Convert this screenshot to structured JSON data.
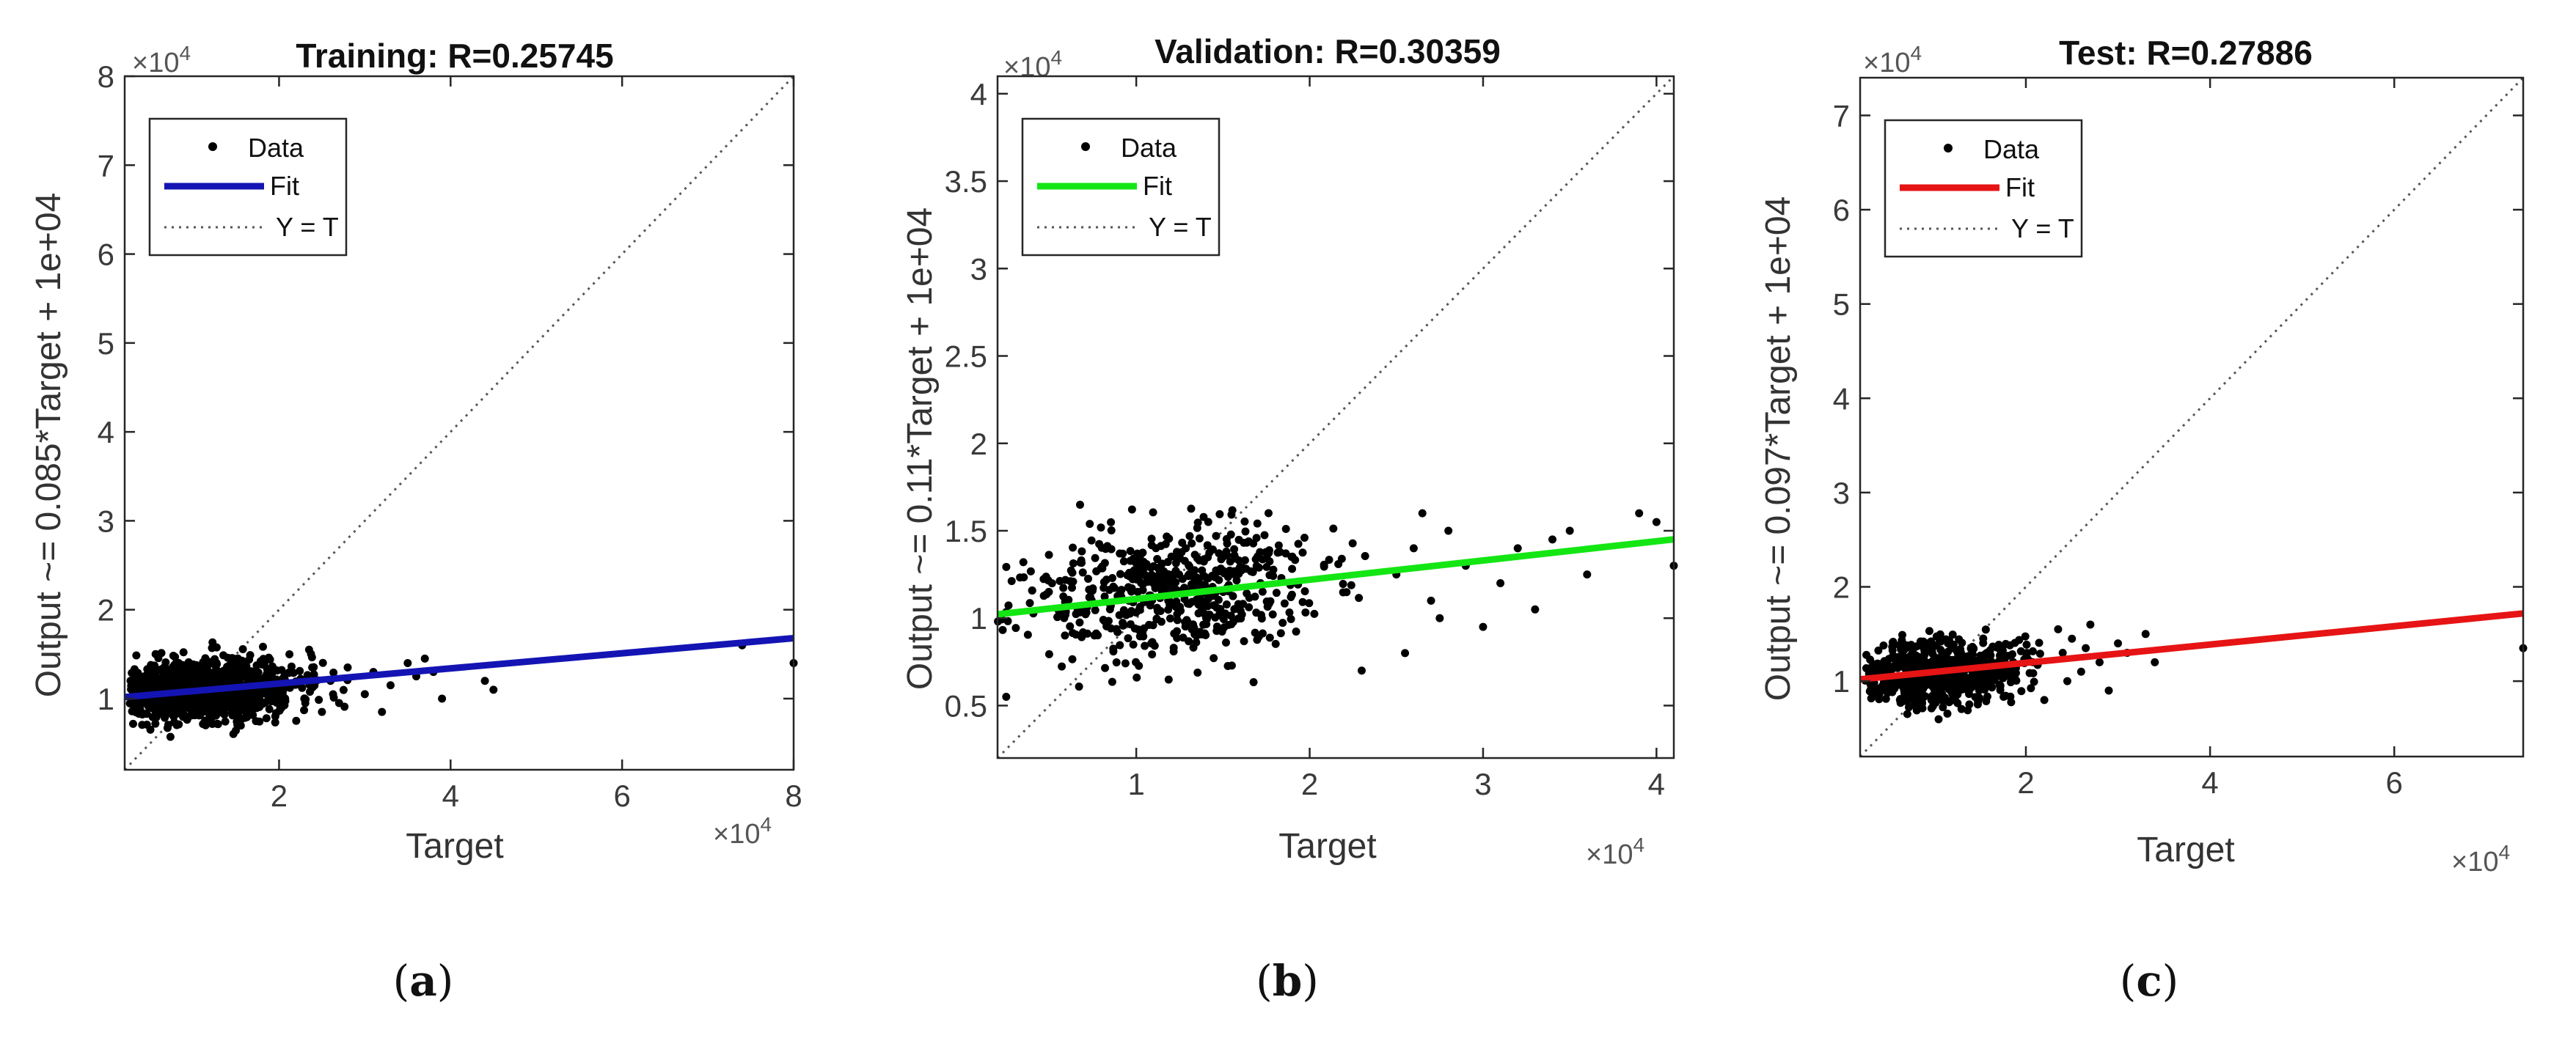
{
  "chart_data": [
    {
      "type": "scatter",
      "panel": "a",
      "caption": "a",
      "title": "Training: R=0.25745",
      "xlabel": "Target",
      "ylabel": "Output ~= 0.085*Target + 1e+04",
      "x_exponent": "×10",
      "x_exponent_power": "4",
      "y_exponent": "×10",
      "y_exponent_power": "4",
      "xlim": [
        0.2,
        8
      ],
      "ylim": [
        0.2,
        8
      ],
      "xticks": [
        2,
        4,
        6,
        8
      ],
      "yticks": [
        1,
        2,
        3,
        4,
        5,
        6,
        7,
        8
      ],
      "tick_labels_x": [
        "2",
        "4",
        "6",
        "8"
      ],
      "tick_labels_y": [
        "1",
        "2",
        "3",
        "4",
        "5",
        "6",
        "7",
        "8"
      ],
      "fit": {
        "slope": 0.085,
        "intercept": 1.0,
        "color": "#1414b4"
      },
      "cloud": {
        "cx": 1.1,
        "cy": 1.1,
        "sx": 0.55,
        "sy": 0.17,
        "n": 1100,
        "xmin": 0.25,
        "xmax": 2.9,
        "ymin": 0.55,
        "ymax": 1.75,
        "seed": 11
      },
      "extra_points": [
        [
          2.6,
          1.2
        ],
        [
          2.8,
          1.35
        ],
        [
          3.0,
          1.05
        ],
        [
          3.1,
          1.3
        ],
        [
          3.3,
          1.15
        ],
        [
          3.5,
          1.4
        ],
        [
          3.6,
          1.25
        ],
        [
          3.8,
          1.3
        ],
        [
          3.9,
          1.0
        ],
        [
          4.4,
          1.2
        ],
        [
          4.5,
          1.1
        ],
        [
          7.4,
          1.6
        ],
        [
          8.0,
          1.4
        ],
        [
          2.2,
          0.75
        ],
        [
          2.5,
          0.85
        ],
        [
          2.7,
          0.95
        ],
        [
          3.2,
          0.85
        ],
        [
          3.7,
          1.45
        ],
        [
          2.35,
          1.55
        ]
      ],
      "legend": {
        "data": "Data",
        "fit": "Fit",
        "yt": "Y = T"
      }
    },
    {
      "type": "scatter",
      "panel": "b",
      "caption": "b",
      "title": "Validation: R=0.30359",
      "xlabel": "Target",
      "ylabel": "Output ~= 0.11*Target + 1e+04",
      "x_exponent": "×10",
      "x_exponent_power": "4",
      "y_exponent": "×10",
      "y_exponent_power": "4",
      "xlim": [
        0.2,
        4.1
      ],
      "ylim": [
        0.2,
        4.1
      ],
      "xticks": [
        1,
        2,
        3,
        4
      ],
      "yticks": [
        0.5,
        1,
        1.5,
        2,
        2.5,
        3,
        3.5,
        4
      ],
      "tick_labels_x": [
        "1",
        "2",
        "3",
        "4"
      ],
      "tick_labels_y": [
        "0.5",
        "1",
        "1.5",
        "2",
        "2.5",
        "3",
        "3.5",
        "4"
      ],
      "fit": {
        "slope": 0.11,
        "intercept": 1.0,
        "color": "#14e614"
      },
      "cloud": {
        "cx": 1.15,
        "cy": 1.15,
        "sx": 0.45,
        "sy": 0.2,
        "n": 550,
        "xmin": 0.2,
        "xmax": 2.4,
        "ymin": 0.6,
        "ymax": 1.65,
        "seed": 23
      },
      "extra_points": [
        [
          2.5,
          1.25
        ],
        [
          2.6,
          1.4
        ],
        [
          2.7,
          1.1
        ],
        [
          2.8,
          1.5
        ],
        [
          2.9,
          1.3
        ],
        [
          3.0,
          0.95
        ],
        [
          3.1,
          1.2
        ],
        [
          3.2,
          1.4
        ],
        [
          3.4,
          1.45
        ],
        [
          3.5,
          1.5
        ],
        [
          3.6,
          1.25
        ],
        [
          3.9,
          1.6
        ],
        [
          4.0,
          1.55
        ],
        [
          4.1,
          1.3
        ],
        [
          2.55,
          0.8
        ],
        [
          2.65,
          1.6
        ],
        [
          2.75,
          1.0
        ],
        [
          2.3,
          0.7
        ],
        [
          0.25,
          0.55
        ],
        [
          3.3,
          1.05
        ]
      ],
      "legend": {
        "data": "Data",
        "fit": "Fit",
        "yt": "Y = T"
      }
    },
    {
      "type": "scatter",
      "panel": "c",
      "caption": "c",
      "title": "Test: R=0.27886",
      "xlabel": "Target",
      "ylabel": "Output ~= 0.097*Target + 1e+04",
      "x_exponent": "×10",
      "x_exponent_power": "4",
      "y_exponent": "×10",
      "y_exponent_power": "4",
      "xlim": [
        0.2,
        7.4
      ],
      "ylim": [
        0.2,
        7.4
      ],
      "xticks": [
        2,
        4,
        6
      ],
      "yticks": [
        1,
        2,
        3,
        4,
        5,
        6,
        7
      ],
      "tick_labels_x": [
        "2",
        "4",
        "6"
      ],
      "tick_labels_y": [
        "1",
        "2",
        "3",
        "4",
        "5",
        "6",
        "7"
      ],
      "fit": {
        "slope": 0.097,
        "intercept": 1.0,
        "color": "#e61414"
      },
      "cloud": {
        "cx": 1.05,
        "cy": 1.1,
        "sx": 0.45,
        "sy": 0.18,
        "n": 600,
        "xmin": 0.25,
        "xmax": 2.3,
        "ymin": 0.55,
        "ymax": 1.65,
        "seed": 37
      },
      "extra_points": [
        [
          2.4,
          1.3
        ],
        [
          2.5,
          1.45
        ],
        [
          2.6,
          1.1
        ],
        [
          2.7,
          1.6
        ],
        [
          2.8,
          1.2
        ],
        [
          2.9,
          0.9
        ],
        [
          3.1,
          1.3
        ],
        [
          3.3,
          1.5
        ],
        [
          3.4,
          1.2
        ],
        [
          7.4,
          1.35
        ],
        [
          2.2,
          0.8
        ],
        [
          2.35,
          1.55
        ],
        [
          2.45,
          1.0
        ],
        [
          2.65,
          1.35
        ],
        [
          3.0,
          1.4
        ]
      ],
      "legend": {
        "data": "Data",
        "fit": "Fit",
        "yt": "Y = T"
      }
    }
  ]
}
